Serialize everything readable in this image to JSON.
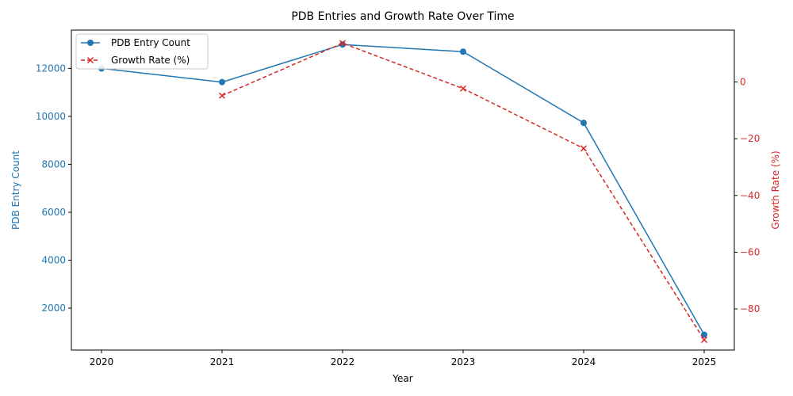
{
  "chart_data": {
    "type": "line",
    "title": "PDB Entries and Growth Rate Over Time",
    "xlabel": "Year",
    "ylabel_left": "PDB Entry Count",
    "ylabel_right": "Growth Rate (%)",
    "x": [
      2020,
      2021,
      2022,
      2023,
      2024,
      2025
    ],
    "x_tick_labels": [
      "2020",
      "2021",
      "2022",
      "2023",
      "2024",
      "2025"
    ],
    "xlim": [
      2019.75,
      2025.25
    ],
    "ylim_left": [
      250,
      13600
    ],
    "ylim_right": [
      -94.5,
      18.3
    ],
    "y_ticks_left": [
      2000,
      4000,
      6000,
      8000,
      10000,
      12000
    ],
    "y_ticks_right": [
      0,
      -20,
      -40,
      -60,
      -80
    ],
    "y_tick_labels_left": [
      "2000",
      "4000",
      "6000",
      "8000",
      "10000",
      "12000"
    ],
    "y_tick_labels_right": [
      "0",
      "−20",
      "−40",
      "−60",
      "−80"
    ],
    "grid": false,
    "legend_position": "top-left",
    "series": [
      {
        "name": "PDB Entry Count",
        "axis": "left",
        "color": "#1f77b4",
        "marker": "circle",
        "linestyle": "solid",
        "x": [
          2020,
          2021,
          2022,
          2023,
          2024,
          2025
        ],
        "values": [
          12000,
          11430,
          13000,
          12700,
          9730,
          890
        ]
      },
      {
        "name": "Growth Rate (%)",
        "axis": "right",
        "color": "#d62728",
        "marker": "x",
        "linestyle": "dashed",
        "x": [
          2021,
          2022,
          2023,
          2024,
          2025
        ],
        "values": [
          -4.8,
          13.7,
          -2.3,
          -23.4,
          -90.9
        ]
      }
    ]
  }
}
